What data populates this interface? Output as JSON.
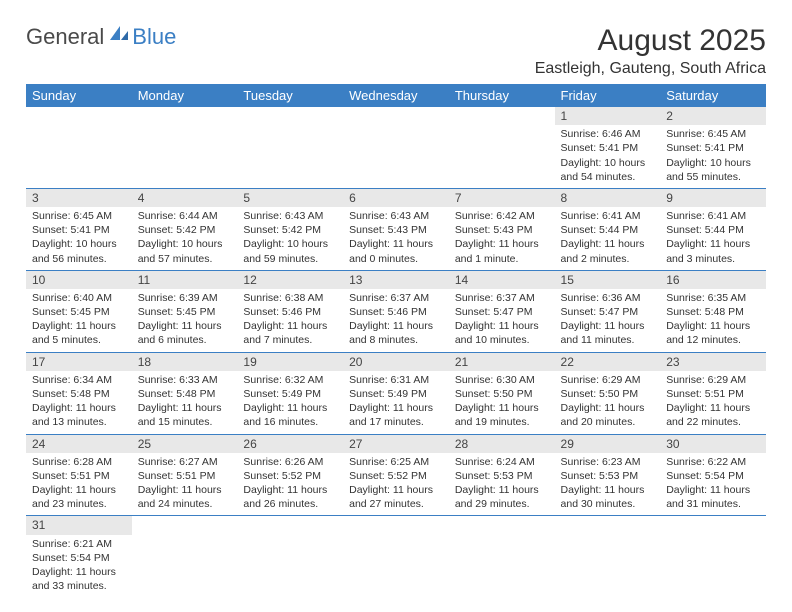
{
  "logo": {
    "general": "General",
    "blue": "Blue"
  },
  "title": "August 2025",
  "location": "Eastleigh, Gauteng, South Africa",
  "colors": {
    "header_bg": "#3b7fc4",
    "header_text": "#ffffff",
    "daynum_bg": "#e8e8e8",
    "border": "#3b7fc4"
  },
  "weekdays": [
    "Sunday",
    "Monday",
    "Tuesday",
    "Wednesday",
    "Thursday",
    "Friday",
    "Saturday"
  ],
  "weeks": [
    [
      null,
      null,
      null,
      null,
      null,
      {
        "n": "1",
        "sr": "Sunrise: 6:46 AM",
        "ss": "Sunset: 5:41 PM",
        "d1": "Daylight: 10 hours",
        "d2": "and 54 minutes."
      },
      {
        "n": "2",
        "sr": "Sunrise: 6:45 AM",
        "ss": "Sunset: 5:41 PM",
        "d1": "Daylight: 10 hours",
        "d2": "and 55 minutes."
      }
    ],
    [
      {
        "n": "3",
        "sr": "Sunrise: 6:45 AM",
        "ss": "Sunset: 5:41 PM",
        "d1": "Daylight: 10 hours",
        "d2": "and 56 minutes."
      },
      {
        "n": "4",
        "sr": "Sunrise: 6:44 AM",
        "ss": "Sunset: 5:42 PM",
        "d1": "Daylight: 10 hours",
        "d2": "and 57 minutes."
      },
      {
        "n": "5",
        "sr": "Sunrise: 6:43 AM",
        "ss": "Sunset: 5:42 PM",
        "d1": "Daylight: 10 hours",
        "d2": "and 59 minutes."
      },
      {
        "n": "6",
        "sr": "Sunrise: 6:43 AM",
        "ss": "Sunset: 5:43 PM",
        "d1": "Daylight: 11 hours",
        "d2": "and 0 minutes."
      },
      {
        "n": "7",
        "sr": "Sunrise: 6:42 AM",
        "ss": "Sunset: 5:43 PM",
        "d1": "Daylight: 11 hours",
        "d2": "and 1 minute."
      },
      {
        "n": "8",
        "sr": "Sunrise: 6:41 AM",
        "ss": "Sunset: 5:44 PM",
        "d1": "Daylight: 11 hours",
        "d2": "and 2 minutes."
      },
      {
        "n": "9",
        "sr": "Sunrise: 6:41 AM",
        "ss": "Sunset: 5:44 PM",
        "d1": "Daylight: 11 hours",
        "d2": "and 3 minutes."
      }
    ],
    [
      {
        "n": "10",
        "sr": "Sunrise: 6:40 AM",
        "ss": "Sunset: 5:45 PM",
        "d1": "Daylight: 11 hours",
        "d2": "and 5 minutes."
      },
      {
        "n": "11",
        "sr": "Sunrise: 6:39 AM",
        "ss": "Sunset: 5:45 PM",
        "d1": "Daylight: 11 hours",
        "d2": "and 6 minutes."
      },
      {
        "n": "12",
        "sr": "Sunrise: 6:38 AM",
        "ss": "Sunset: 5:46 PM",
        "d1": "Daylight: 11 hours",
        "d2": "and 7 minutes."
      },
      {
        "n": "13",
        "sr": "Sunrise: 6:37 AM",
        "ss": "Sunset: 5:46 PM",
        "d1": "Daylight: 11 hours",
        "d2": "and 8 minutes."
      },
      {
        "n": "14",
        "sr": "Sunrise: 6:37 AM",
        "ss": "Sunset: 5:47 PM",
        "d1": "Daylight: 11 hours",
        "d2": "and 10 minutes."
      },
      {
        "n": "15",
        "sr": "Sunrise: 6:36 AM",
        "ss": "Sunset: 5:47 PM",
        "d1": "Daylight: 11 hours",
        "d2": "and 11 minutes."
      },
      {
        "n": "16",
        "sr": "Sunrise: 6:35 AM",
        "ss": "Sunset: 5:48 PM",
        "d1": "Daylight: 11 hours",
        "d2": "and 12 minutes."
      }
    ],
    [
      {
        "n": "17",
        "sr": "Sunrise: 6:34 AM",
        "ss": "Sunset: 5:48 PM",
        "d1": "Daylight: 11 hours",
        "d2": "and 13 minutes."
      },
      {
        "n": "18",
        "sr": "Sunrise: 6:33 AM",
        "ss": "Sunset: 5:48 PM",
        "d1": "Daylight: 11 hours",
        "d2": "and 15 minutes."
      },
      {
        "n": "19",
        "sr": "Sunrise: 6:32 AM",
        "ss": "Sunset: 5:49 PM",
        "d1": "Daylight: 11 hours",
        "d2": "and 16 minutes."
      },
      {
        "n": "20",
        "sr": "Sunrise: 6:31 AM",
        "ss": "Sunset: 5:49 PM",
        "d1": "Daylight: 11 hours",
        "d2": "and 17 minutes."
      },
      {
        "n": "21",
        "sr": "Sunrise: 6:30 AM",
        "ss": "Sunset: 5:50 PM",
        "d1": "Daylight: 11 hours",
        "d2": "and 19 minutes."
      },
      {
        "n": "22",
        "sr": "Sunrise: 6:29 AM",
        "ss": "Sunset: 5:50 PM",
        "d1": "Daylight: 11 hours",
        "d2": "and 20 minutes."
      },
      {
        "n": "23",
        "sr": "Sunrise: 6:29 AM",
        "ss": "Sunset: 5:51 PM",
        "d1": "Daylight: 11 hours",
        "d2": "and 22 minutes."
      }
    ],
    [
      {
        "n": "24",
        "sr": "Sunrise: 6:28 AM",
        "ss": "Sunset: 5:51 PM",
        "d1": "Daylight: 11 hours",
        "d2": "and 23 minutes."
      },
      {
        "n": "25",
        "sr": "Sunrise: 6:27 AM",
        "ss": "Sunset: 5:51 PM",
        "d1": "Daylight: 11 hours",
        "d2": "and 24 minutes."
      },
      {
        "n": "26",
        "sr": "Sunrise: 6:26 AM",
        "ss": "Sunset: 5:52 PM",
        "d1": "Daylight: 11 hours",
        "d2": "and 26 minutes."
      },
      {
        "n": "27",
        "sr": "Sunrise: 6:25 AM",
        "ss": "Sunset: 5:52 PM",
        "d1": "Daylight: 11 hours",
        "d2": "and 27 minutes."
      },
      {
        "n": "28",
        "sr": "Sunrise: 6:24 AM",
        "ss": "Sunset: 5:53 PM",
        "d1": "Daylight: 11 hours",
        "d2": "and 29 minutes."
      },
      {
        "n": "29",
        "sr": "Sunrise: 6:23 AM",
        "ss": "Sunset: 5:53 PM",
        "d1": "Daylight: 11 hours",
        "d2": "and 30 minutes."
      },
      {
        "n": "30",
        "sr": "Sunrise: 6:22 AM",
        "ss": "Sunset: 5:54 PM",
        "d1": "Daylight: 11 hours",
        "d2": "and 31 minutes."
      }
    ],
    [
      {
        "n": "31",
        "sr": "Sunrise: 6:21 AM",
        "ss": "Sunset: 5:54 PM",
        "d1": "Daylight: 11 hours",
        "d2": "and 33 minutes."
      },
      null,
      null,
      null,
      null,
      null,
      null
    ]
  ]
}
